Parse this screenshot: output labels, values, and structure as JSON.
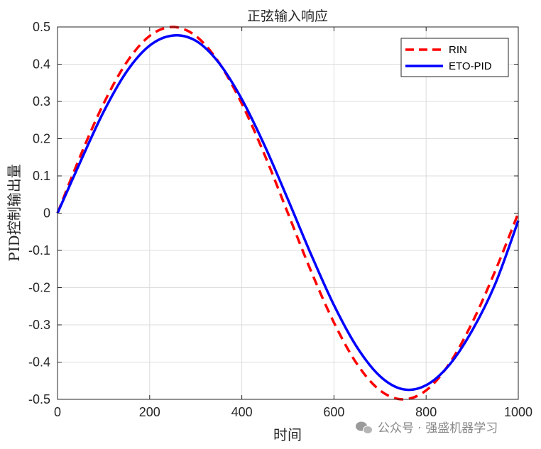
{
  "chart_data": {
    "type": "line",
    "title": "正弦输入响应",
    "xlabel": "时间",
    "ylabel": "PID控制输出量",
    "xlim": [
      0,
      1000
    ],
    "ylim": [
      -0.5,
      0.5
    ],
    "xticks": [
      0,
      200,
      400,
      600,
      800,
      1000
    ],
    "yticks": [
      0.5,
      0.4,
      0.3,
      0.2,
      0.1,
      0,
      -0.1,
      -0.2,
      -0.3,
      -0.4,
      -0.5
    ],
    "grid": true,
    "legend_position": "top-right",
    "x": [
      0,
      50,
      100,
      150,
      200,
      250,
      300,
      350,
      400,
      450,
      500,
      550,
      600,
      650,
      700,
      750,
      800,
      850,
      900,
      950,
      1000
    ],
    "series": [
      {
        "name": "RIN",
        "color": "#ff0000",
        "style": "dashed",
        "values": [
          0.0,
          0.155,
          0.294,
          0.405,
          0.476,
          0.5,
          0.476,
          0.405,
          0.294,
          0.155,
          0.0,
          -0.155,
          -0.294,
          -0.405,
          -0.476,
          -0.5,
          -0.476,
          -0.405,
          -0.294,
          -0.155,
          0.0
        ]
      },
      {
        "name": "ETO-PID",
        "color": "#0000ff",
        "style": "solid",
        "values": [
          0.0,
          0.139,
          0.272,
          0.38,
          0.45,
          0.477,
          0.463,
          0.404,
          0.306,
          0.18,
          0.037,
          -0.11,
          -0.247,
          -0.36,
          -0.438,
          -0.473,
          -0.462,
          -0.408,
          -0.315,
          -0.19,
          -0.02
        ]
      }
    ]
  },
  "watermark": {
    "text": "公众号 · 强盛机器学习",
    "icon": "wechat-icon"
  }
}
